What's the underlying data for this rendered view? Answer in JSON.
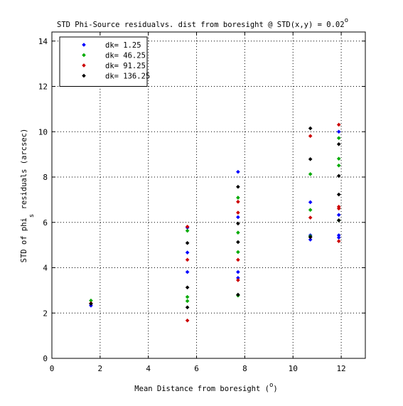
{
  "chart_data": {
    "type": "scatter",
    "title": "STD Phi-Source residualvs. dist from boresight @ STD(x,y) = 0.02",
    "title_superscript": "o",
    "xlabel": "Mean Distance from boresight (",
    "xlabel_superscript": "o",
    "xlabel_suffix": ")",
    "ylabel": "STD of phi",
    "ylabel_subscript": "s",
    "ylabel_suffix": " residuals (arcsec)",
    "xlim": [
      0,
      13
    ],
    "ylim": [
      0,
      14.4
    ],
    "xticks": [
      0,
      2,
      4,
      6,
      8,
      10,
      12
    ],
    "yticks": [
      0,
      2,
      4,
      6,
      8,
      10,
      12,
      14
    ],
    "grid": true,
    "legend_position": "top-left",
    "series": [
      {
        "name": "dk= 1.25",
        "color": "#0000ff",
        "marker": "diamond",
        "x": [
          1.62,
          5.62,
          5.62,
          5.62,
          7.72,
          7.72,
          7.72,
          7.72,
          10.72,
          10.72,
          10.72,
          11.9,
          11.9,
          11.9,
          11.9
        ],
        "y": [
          2.33,
          4.67,
          3.81,
          5.77,
          8.23,
          6.23,
          3.81,
          3.55,
          6.89,
          5.43,
          5.24,
          10.0,
          6.33,
          5.43,
          5.33
        ]
      },
      {
        "name": "dk= 46.25",
        "color": "#00aa00",
        "marker": "diamond",
        "x": [
          1.62,
          5.62,
          5.62,
          5.62,
          7.72,
          7.72,
          7.72,
          7.72,
          10.72,
          10.72,
          10.72,
          11.9,
          11.9,
          11.9,
          11.9
        ],
        "y": [
          2.55,
          5.63,
          2.71,
          2.53,
          7.09,
          5.55,
          4.69,
          2.77,
          8.13,
          6.55,
          5.39,
          9.72,
          8.81,
          8.51,
          6.09
        ]
      },
      {
        "name": "dk= 91.25",
        "color": "#cc0000",
        "marker": "diamond",
        "x": [
          1.62,
          5.62,
          5.62,
          5.62,
          7.72,
          7.72,
          7.72,
          7.72,
          10.72,
          10.72,
          10.72,
          11.9,
          11.9,
          11.9,
          11.9
        ],
        "y": [
          2.43,
          5.81,
          4.35,
          1.67,
          6.91,
          6.43,
          4.35,
          3.45,
          9.81,
          6.21,
          5.35,
          10.31,
          6.69,
          6.61,
          5.17
        ]
      },
      {
        "name": "dk= 136.25",
        "color": "#000000",
        "marker": "diamond",
        "x": [
          1.62,
          5.62,
          5.62,
          5.62,
          7.72,
          7.72,
          7.72,
          7.72,
          10.72,
          10.72,
          10.72,
          11.9,
          11.9,
          11.9,
          11.9
        ],
        "y": [
          2.41,
          5.09,
          3.13,
          2.25,
          7.57,
          5.95,
          5.13,
          2.81,
          10.15,
          8.79,
          5.35,
          9.45,
          8.05,
          7.23,
          6.09
        ]
      }
    ]
  }
}
